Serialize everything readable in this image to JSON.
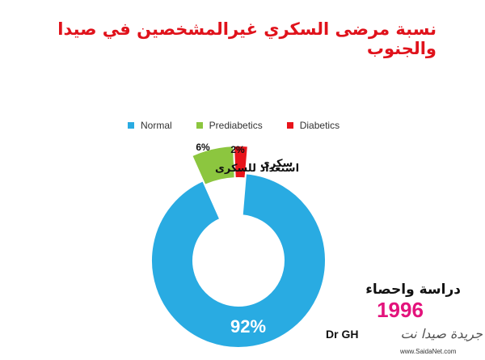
{
  "title": "نسبة مرضى السكري غيرالمشخصين في صيدا والجنوب",
  "chart_data": {
    "type": "pie",
    "donut": true,
    "exploded": [
      "Prediabetics",
      "Diabetics"
    ],
    "legend_position": "top",
    "series": [
      {
        "name": "Normal",
        "value": 92,
        "label": "92%",
        "color": "#29abe2"
      },
      {
        "name": "Prediabetics",
        "value": 6,
        "label": "6%",
        "color": "#8cc63f",
        "annotation": "استعداد للسكرى"
      },
      {
        "name": "Diabetics",
        "value": 2,
        "label": "2%",
        "color": "#e8141b",
        "annotation": "سكرى"
      }
    ]
  },
  "study_note": "دراسة واحصاء",
  "year": "1996",
  "author": "Dr GH",
  "watermark": {
    "text": "جريدة صيدا نت",
    "url": "www.SaidaNet.com"
  }
}
